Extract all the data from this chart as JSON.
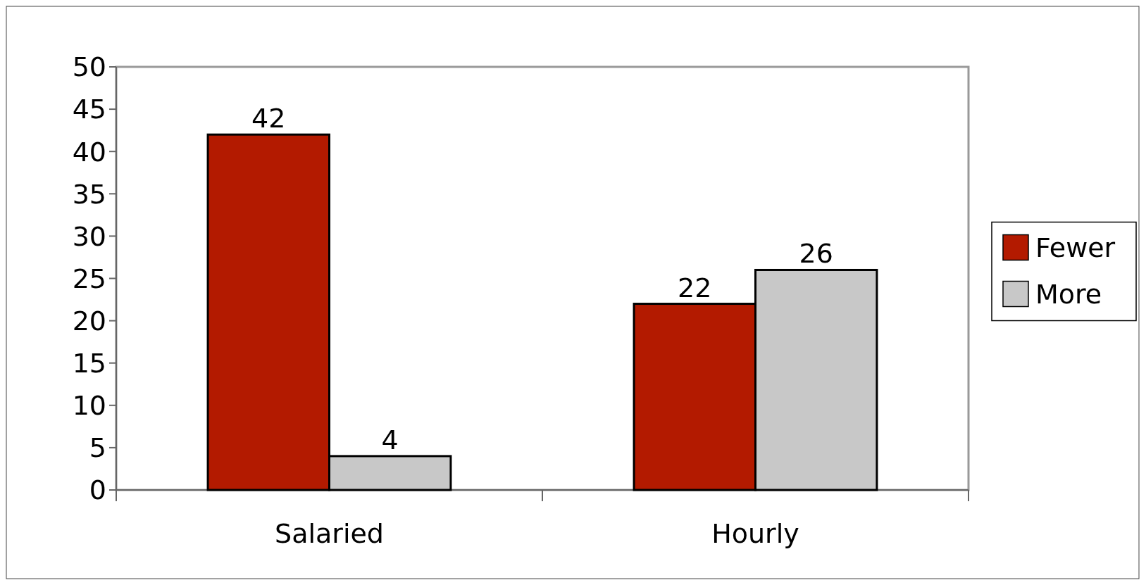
{
  "chart_data": {
    "type": "bar",
    "categories": [
      "Salaried",
      "Hourly"
    ],
    "series": [
      {
        "name": "Fewer",
        "color": "#b31a00",
        "values": [
          42,
          22
        ]
      },
      {
        "name": "More",
        "color": "#c8c8c8",
        "values": [
          4,
          26
        ]
      }
    ],
    "ylim": [
      0,
      50
    ],
    "yticks": [
      0,
      5,
      10,
      15,
      20,
      25,
      30,
      35,
      40,
      45,
      50
    ],
    "grid": false,
    "legend": "right",
    "data_labels": true
  }
}
